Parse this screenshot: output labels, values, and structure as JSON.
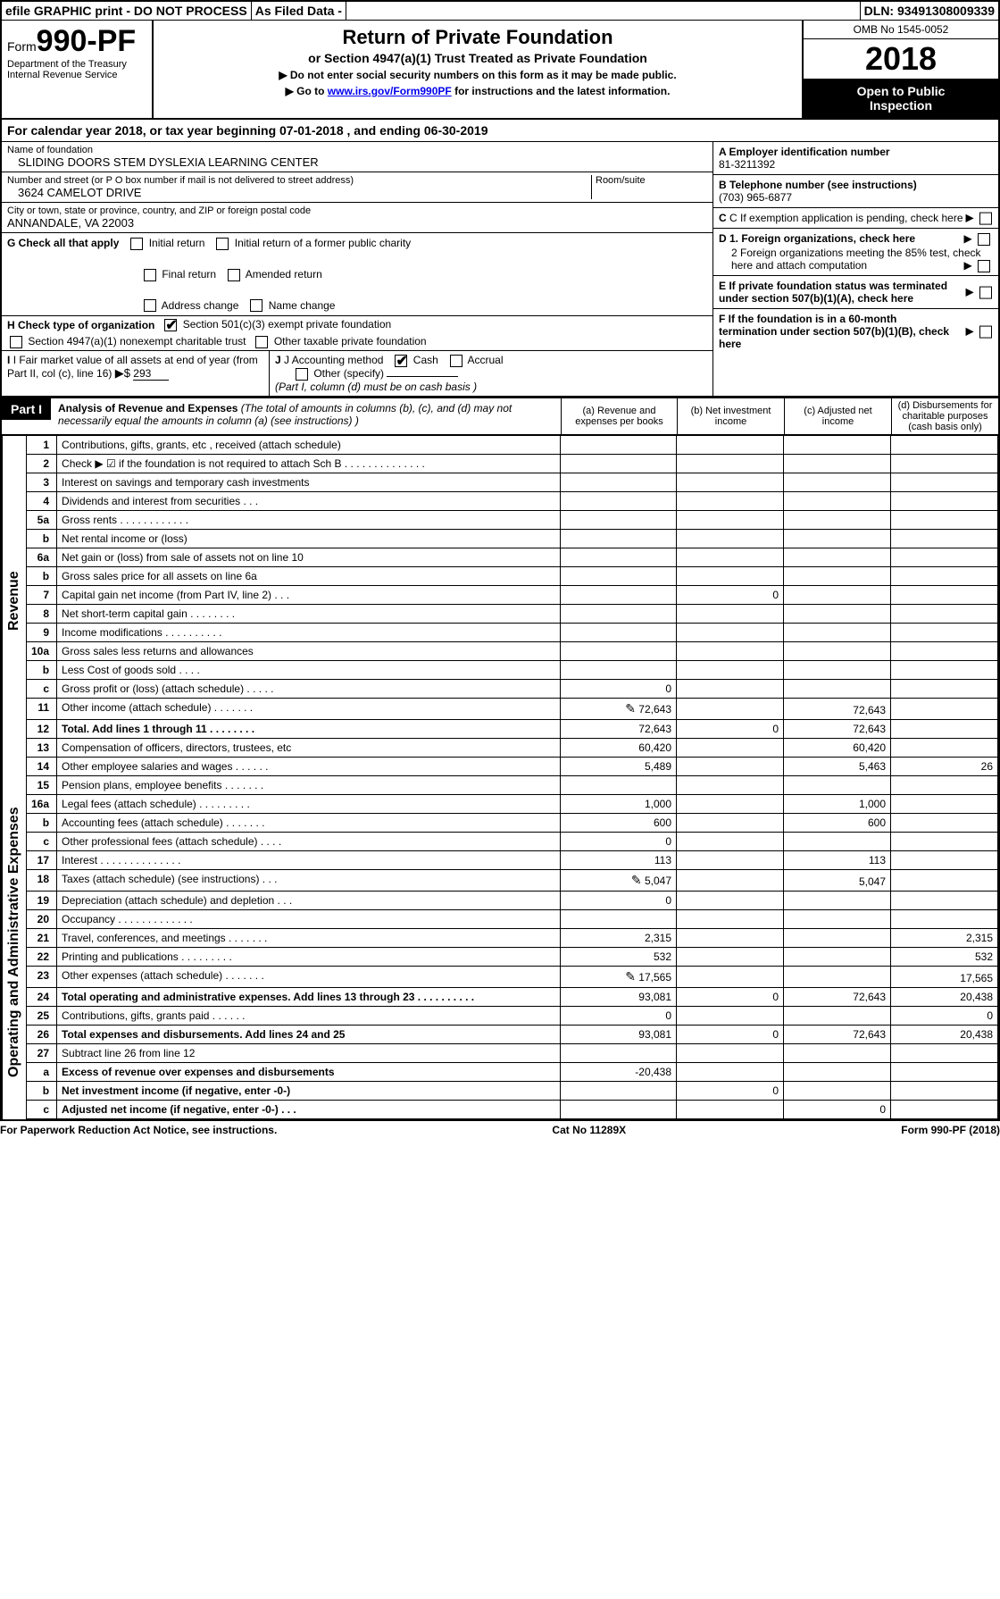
{
  "colors": {
    "black": "#000000",
    "white": "#ffffff",
    "link": "#0000ee"
  },
  "topbar": {
    "efile": "efile GRAPHIC print - DO NOT PROCESS",
    "asfiled": "As Filed Data -",
    "dln_label": "DLN:",
    "dln": "93491308009339"
  },
  "header": {
    "form_prefix": "Form",
    "form_number": "990-PF",
    "agency1": "Department of the Treasury",
    "agency2": "Internal Revenue Service",
    "title": "Return of Private Foundation",
    "subtitle": "or Section 4947(a)(1) Trust Treated as Private Foundation",
    "note1": "▶ Do not enter social security numbers on this form as it may be made public.",
    "note2_pre": "▶ Go to ",
    "note2_link": "www.irs.gov/Form990PF",
    "note2_post": " for instructions and the latest information.",
    "omb": "OMB No 1545-0052",
    "year": "2018",
    "inspect1": "Open to Public",
    "inspect2": "Inspection"
  },
  "calendar": {
    "pre": "For calendar year 2018, or tax year beginning ",
    "begin": "07-01-2018",
    "mid": " , and ending ",
    "end": "06-30-2019"
  },
  "info": {
    "name_label": "Name of foundation",
    "name": "SLIDING DOORS STEM DYSLEXIA LEARNING CENTER",
    "addr_label": "Number and street (or P O  box number if mail is not delivered to street address)",
    "room_label": "Room/suite",
    "addr": "3624 CAMELOT DRIVE",
    "city_label": "City or town, state or province, country, and ZIP or foreign postal code",
    "city": "ANNANDALE, VA  22003",
    "a_label": "A Employer identification number",
    "a_val": "81-3211392",
    "b_label": "B Telephone number (see instructions)",
    "b_val": "(703) 965-6877",
    "c_label": "C If exemption application is pending, check here",
    "d1": "D 1. Foreign organizations, check here",
    "d2": "2  Foreign organizations meeting the 85% test, check here and attach computation",
    "e": "E  If private foundation status was terminated under section 507(b)(1)(A), check here",
    "f": "F  If the foundation is in a 60-month termination under section 507(b)(1)(B), check here"
  },
  "g": {
    "label": "G Check all that apply",
    "opts": [
      "Initial return",
      "Initial return of a former public charity",
      "Final return",
      "Amended return",
      "Address change",
      "Name change"
    ]
  },
  "h": {
    "label": "H Check type of organization",
    "opt1": "Section 501(c)(3) exempt private foundation",
    "opt2": "Section 4947(a)(1) nonexempt charitable trust",
    "opt3": "Other taxable private foundation"
  },
  "i": {
    "label": "I Fair market value of all assets at end of year (from Part II, col  (c), line 16)",
    "arrow": "▶$",
    "val": "293"
  },
  "j": {
    "label": "J Accounting method",
    "cash": "Cash",
    "accrual": "Accrual",
    "other": "Other (specify)",
    "note": "(Part I, column (d) must be on cash basis )"
  },
  "part1": {
    "label": "Part I",
    "title": "Analysis of Revenue and Expenses",
    "paren": "(The total of amounts in columns (b), (c), and (d) may not necessarily equal the amounts in column (a) (see instructions) )",
    "col_a": "(a)  Revenue and expenses per books",
    "col_b": "(b) Net investment income",
    "col_c": "(c) Adjusted net income",
    "col_d": "(d) Disbursements for charitable purposes (cash basis only)"
  },
  "side": {
    "revenue": "Revenue",
    "expenses": "Operating and Administrative Expenses"
  },
  "lines": {
    "r1": {
      "n": "1",
      "d": "Contributions, gifts, grants, etc , received (attach schedule)"
    },
    "r2": {
      "n": "2",
      "d": "Check ▶ ☑ if the foundation is not required to attach Sch B     .  .  .  .  .  .  .  .  .  .  .  .  .  ."
    },
    "r3": {
      "n": "3",
      "d": "Interest on savings and temporary cash investments"
    },
    "r4": {
      "n": "4",
      "d": "Dividends and interest from securities    .  .  ."
    },
    "r5a": {
      "n": "5a",
      "d": "Gross rents    .  .  .  .  .  .  .  .  .  .  .  ."
    },
    "r5b": {
      "n": "b",
      "d": "Net rental income or (loss)  "
    },
    "r6a": {
      "n": "6a",
      "d": "Net gain or (loss) from sale of assets not on line 10"
    },
    "r6b": {
      "n": "b",
      "d": "Gross sales price for all assets on line 6a"
    },
    "r7": {
      "n": "7",
      "d": "Capital gain net income (from Part IV, line 2)  .  .  .",
      "b": "0"
    },
    "r8": {
      "n": "8",
      "d": "Net short-term capital gain  .  .  .  .  .  .  .  ."
    },
    "r9": {
      "n": "9",
      "d": "Income modifications .  .  .  .  .  .  .  .  .  ."
    },
    "r10a": {
      "n": "10a",
      "d": "Gross sales less returns and allowances"
    },
    "r10b": {
      "n": "b",
      "d": "Less  Cost of goods sold   .  .  .  ."
    },
    "r10c": {
      "n": "c",
      "d": "Gross profit or (loss) (attach schedule)   .  .  .  .  .",
      "a": "0"
    },
    "r11": {
      "n": "11",
      "d": "Other income (attach schedule)   .  .  .  .  .  .  .",
      "a": "72,643",
      "c": "72,643",
      "icon": "✎"
    },
    "r12": {
      "n": "12",
      "d": "Total. Add lines 1 through 11  .  .  .  .  .  .  .  .",
      "a": "72,643",
      "b": "0",
      "c": "72,643",
      "bold": true
    },
    "e13": {
      "n": "13",
      "d": "Compensation of officers, directors, trustees, etc",
      "a": "60,420",
      "c": "60,420"
    },
    "e14": {
      "n": "14",
      "d": "Other employee salaries and wages   .  .  .  .  .  .",
      "a": "5,489",
      "c": "5,463",
      "dd": "26"
    },
    "e15": {
      "n": "15",
      "d": "Pension plans, employee benefits  .  .  .  .  .  .  ."
    },
    "e16a": {
      "n": "16a",
      "d": "Legal fees (attach schedule) .  .  .  .  .  .  .  .  .",
      "a": "1,000",
      "c": "1,000"
    },
    "e16b": {
      "n": "b",
      "d": "Accounting fees (attach schedule) .  .  .  .  .  .  .",
      "a": "600",
      "c": "600"
    },
    "e16c": {
      "n": "c",
      "d": "Other professional fees (attach schedule)   .  .  .  .",
      "a": "0"
    },
    "e17": {
      "n": "17",
      "d": "Interest  .  .  .  .  .  .  .  .  .  .  .  .  .  .",
      "a": "113",
      "c": "113"
    },
    "e18": {
      "n": "18",
      "d": "Taxes (attach schedule) (see instructions)    .  .  .",
      "a": "5,047",
      "c": "5,047",
      "icon": "✎"
    },
    "e19": {
      "n": "19",
      "d": "Depreciation (attach schedule) and depletion   .  .  .",
      "a": "0"
    },
    "e20": {
      "n": "20",
      "d": "Occupancy  .  .  .  .  .  .  .  .  .  .  .  .  ."
    },
    "e21": {
      "n": "21",
      "d": "Travel, conferences, and meetings .  .  .  .  .  .  .",
      "a": "2,315",
      "dd": "2,315"
    },
    "e22": {
      "n": "22",
      "d": "Printing and publications .  .  .  .  .  .  .  .  .",
      "a": "532",
      "dd": "532"
    },
    "e23": {
      "n": "23",
      "d": "Other expenses (attach schedule) .  .  .  .  .  .  .",
      "a": "17,565",
      "dd": "17,565",
      "icon": "✎"
    },
    "e24": {
      "n": "24",
      "d": "Total operating and administrative expenses. Add lines 13 through 23  .  .  .  .  .  .  .  .  .  .",
      "a": "93,081",
      "b": "0",
      "c": "72,643",
      "dd": "20,438",
      "bold": true
    },
    "e25": {
      "n": "25",
      "d": "Contributions, gifts, grants paid    .  .  .  .  .  .",
      "a": "0",
      "dd": "0"
    },
    "e26": {
      "n": "26",
      "d": "Total expenses and disbursements. Add lines 24 and 25",
      "a": "93,081",
      "b": "0",
      "c": "72,643",
      "dd": "20,438",
      "bold": true
    },
    "s27": {
      "n": "27",
      "d": "Subtract line 26 from line 12"
    },
    "s27a": {
      "n": "a",
      "d": "Excess of revenue over expenses and disbursements",
      "a": "-20,438",
      "bold": true
    },
    "s27b": {
      "n": "b",
      "d": "Net investment income (if negative, enter -0-)",
      "b": "0",
      "bold": true
    },
    "s27c": {
      "n": "c",
      "d": "Adjusted net income (if negative, enter -0-)  .  .  .",
      "c": "0",
      "bold": true
    }
  },
  "footer": {
    "left": "For Paperwork Reduction Act Notice, see instructions.",
    "mid": "Cat  No  11289X",
    "right": "Form 990-PF (2018)"
  }
}
